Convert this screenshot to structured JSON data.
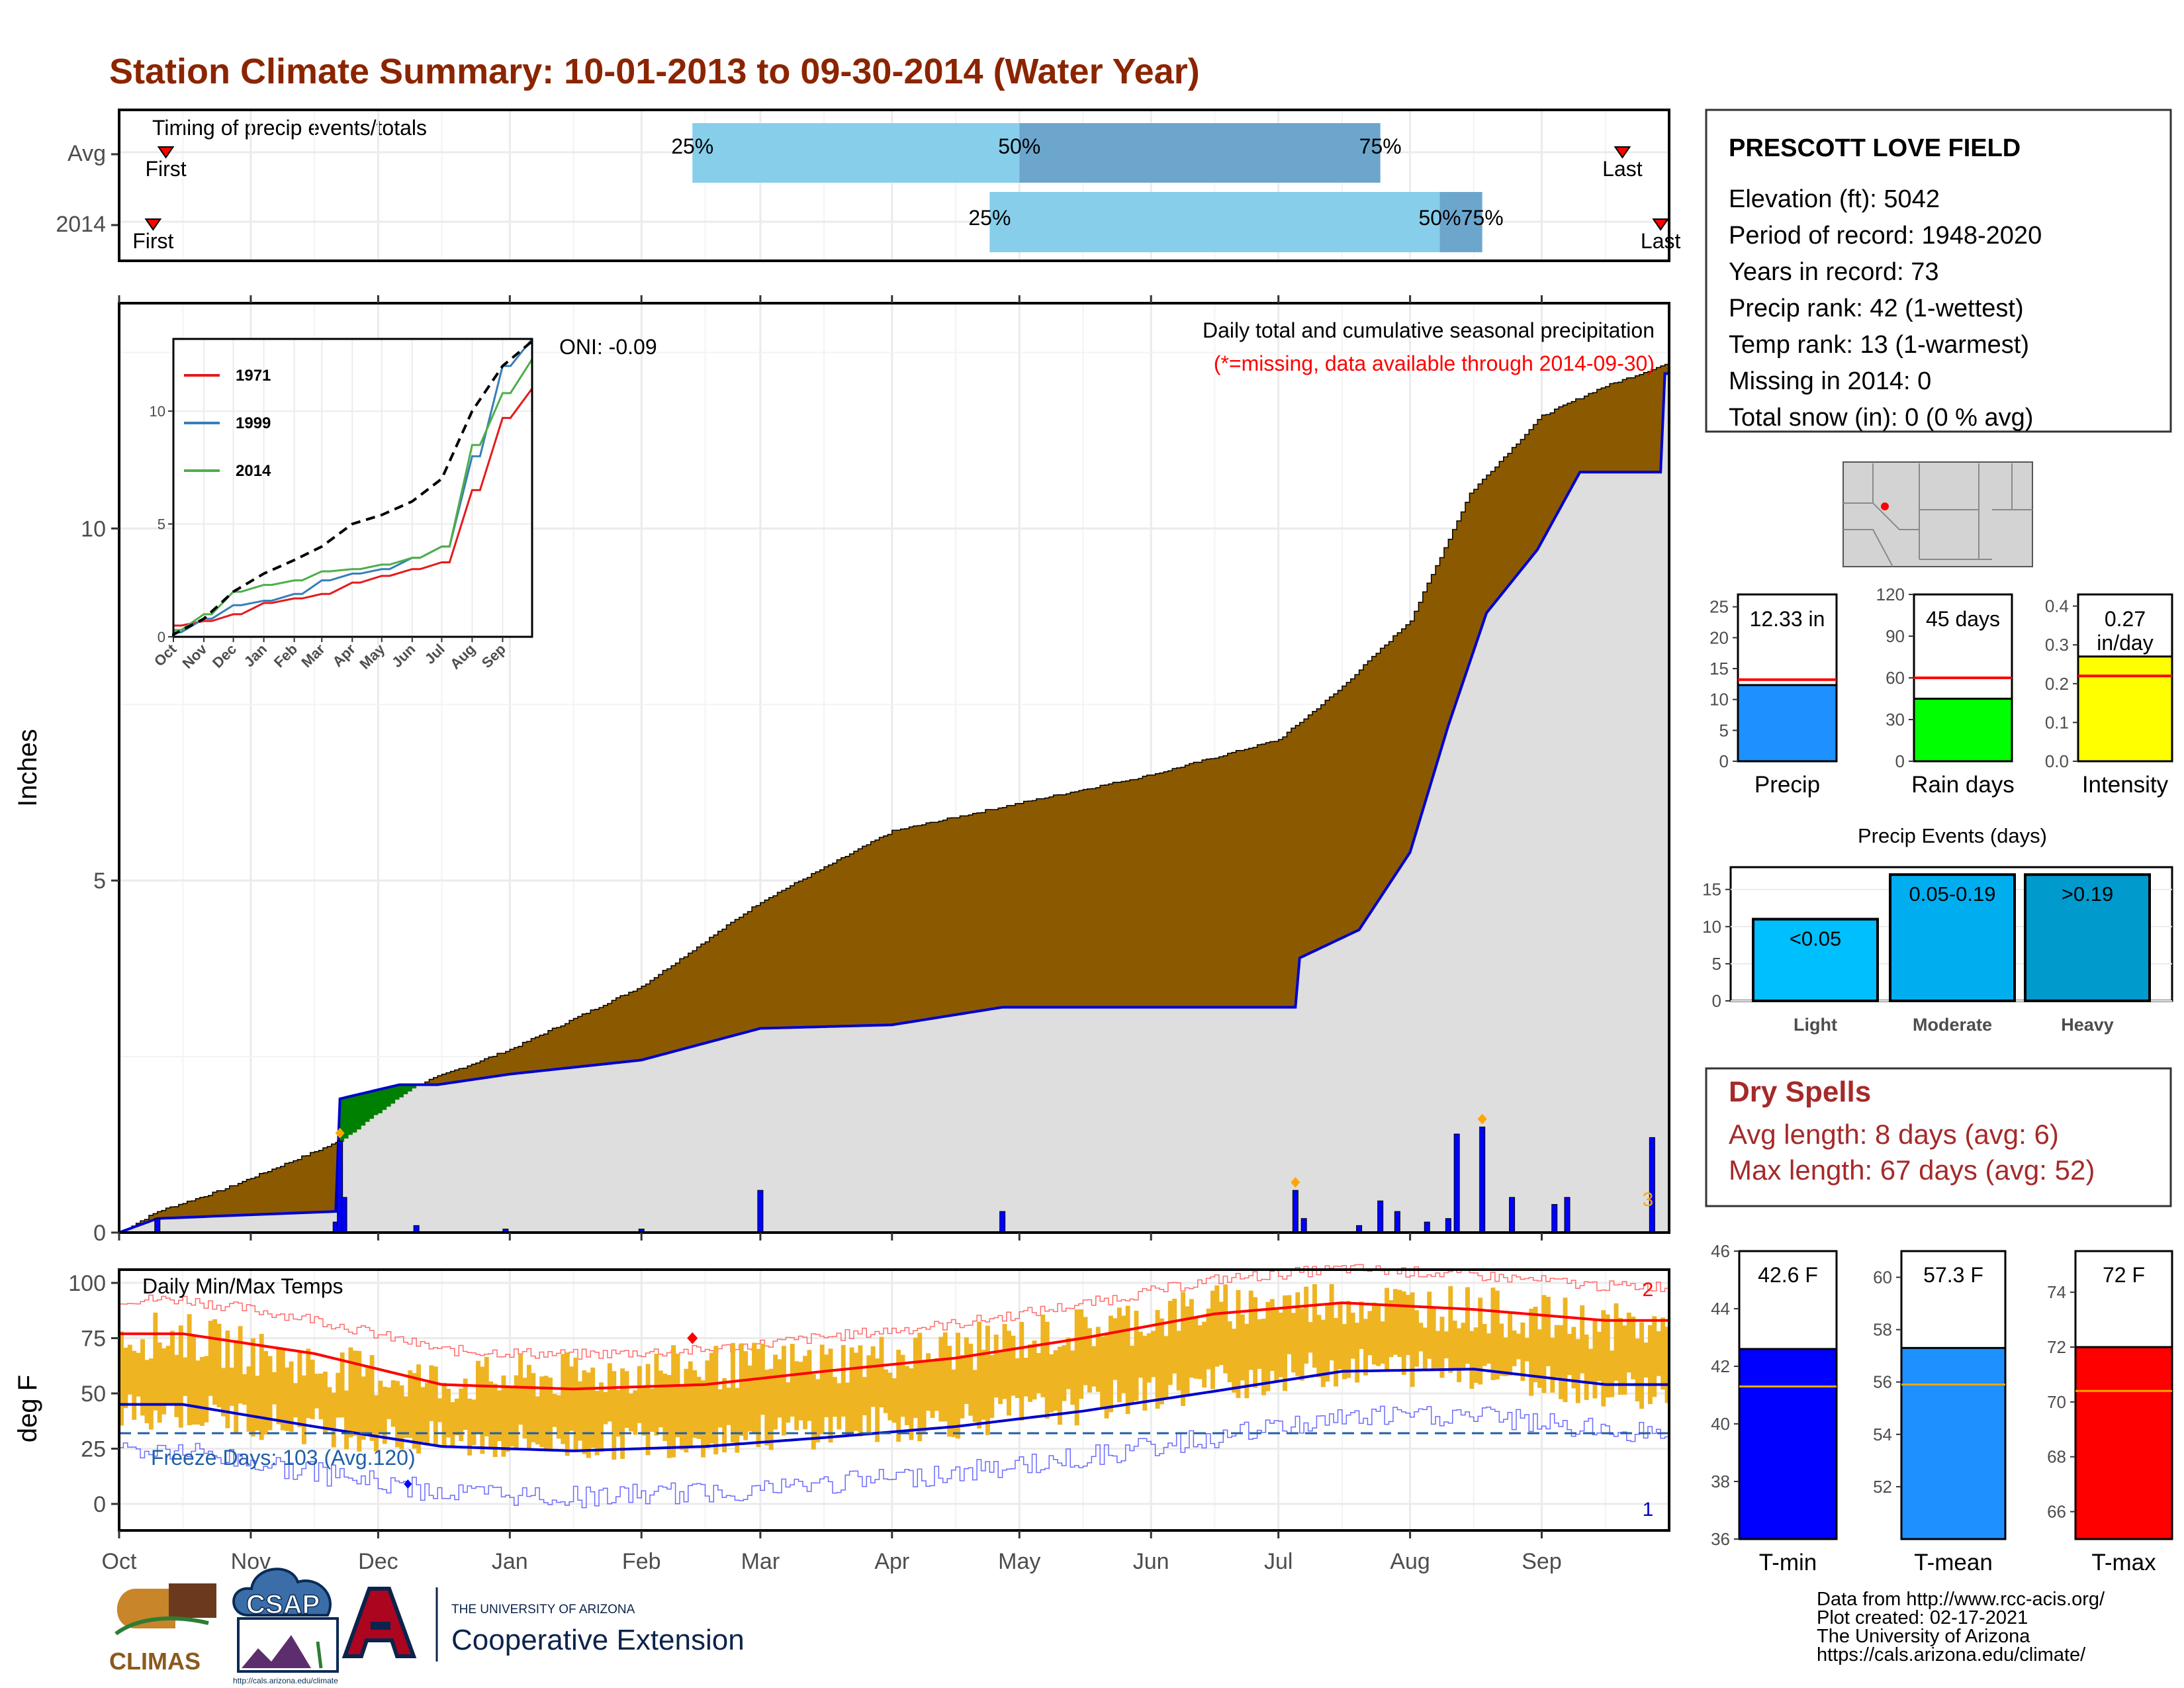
{
  "title": "Station Climate Summary: 10-01-2013 to 09-30-2014 (Water Year)",
  "timing": {
    "label": "Timing of precip events/totals",
    "rows": [
      "Avg",
      "2014"
    ],
    "first_label": "First",
    "last_label": "Last",
    "pct_labels": [
      "25%",
      "50%",
      "75%"
    ]
  },
  "months": [
    "Oct",
    "Nov",
    "Dec",
    "Jan",
    "Feb",
    "Mar",
    "Apr",
    "May",
    "Jun",
    "Jul",
    "Aug",
    "Sep"
  ],
  "precip_panel": {
    "ylabel": "Inches",
    "title": "Daily total and cumulative seasonal precipitation",
    "missing_note": "(*=missing, data available through 2014-09-30)",
    "oni": "ONI: -0.09",
    "corner_count": "3",
    "yticks": [
      "0",
      "5",
      "10"
    ],
    "colors": {
      "cum_2014": "#8B5A00",
      "avg_fill": "#008000",
      "avg_line": "#0000CD",
      "bars": "#0000FF",
      "background": "#DEDEDE"
    }
  },
  "inset": {
    "legend": [
      "1971",
      "1999",
      "2014"
    ],
    "colors": [
      "#E41A1C",
      "#377EB8",
      "#4DAF4A"
    ],
    "yticks": [
      "0",
      "5",
      "10"
    ],
    "xticks": [
      "Oct",
      "Nov",
      "Dec",
      "Jan",
      "Feb",
      "Mar",
      "Apr",
      "May",
      "Jun",
      "Jul",
      "Aug",
      "Sep"
    ]
  },
  "temp_panel": {
    "ylabel": "deg F",
    "title": "Daily Min/Max Temps",
    "freeze": "Freeze Days: 103 (Avg.120)",
    "count_top": "2",
    "count_bottom": "1",
    "yticks": [
      "0",
      "25",
      "50",
      "75",
      "100"
    ],
    "colors": {
      "bars": "#EEB422",
      "max_line": "#FF0000",
      "min_line": "#0000CD",
      "freeze_line": "#1F5FA8"
    }
  },
  "station": {
    "name": "PRESCOTT LOVE FIELD",
    "lines": [
      "Elevation (ft): 5042",
      "Period of record: 1948-2020",
      "Years in record: 73",
      "Precip rank: 42 (1-wettest)",
      "Temp rank: 13 (1-warmest)",
      "Missing in 2014: 0",
      "Total snow (in): 0 (0 % avg)"
    ]
  },
  "mini_bars": [
    {
      "label": "Precip",
      "value_text": "12.33 in",
      "color": "#1E90FF",
      "yticks": [
        "0",
        "5",
        "10",
        "15",
        "20",
        "25"
      ]
    },
    {
      "label": "Rain days",
      "value_text": "45 days",
      "color": "#00FF00",
      "yticks": [
        "0",
        "30",
        "60",
        "90",
        "120"
      ]
    },
    {
      "label": "Intensity",
      "value_text": "0.27",
      "value_text2": "in/day",
      "color": "#FFFF00",
      "yticks": [
        "0.0",
        "0.1",
        "0.2",
        "0.3",
        "0.4"
      ]
    }
  ],
  "events": {
    "title": "Precip Events (days)",
    "categories": [
      "Light",
      "Moderate",
      "Heavy"
    ],
    "bin_labels": [
      "<0.05",
      "0.05-0.19",
      ">0.19"
    ],
    "values": [
      11,
      17,
      17
    ],
    "colors": [
      "#00BFFF",
      "#00AEEF",
      "#009ACD"
    ],
    "yticks": [
      "0",
      "5",
      "10",
      "15"
    ]
  },
  "dry_spells": {
    "title": "Dry Spells",
    "avg": "Avg length: 8 days (avg: 6)",
    "max": "Max length: 67 days (avg: 52)"
  },
  "temp_bars": [
    {
      "label": "T-min",
      "value_text": "42.6 F",
      "color": "#0000FF",
      "yticks": [
        "36",
        "38",
        "40",
        "42",
        "44",
        "46"
      ]
    },
    {
      "label": "T-mean",
      "value_text": "57.3 F",
      "color": "#1E90FF",
      "yticks": [
        "52",
        "54",
        "56",
        "58",
        "60"
      ]
    },
    {
      "label": "T-max",
      "value_text": "72 F",
      "color": "#FF0000",
      "yticks": [
        "66",
        "68",
        "70",
        "72",
        "74"
      ]
    }
  ],
  "footer": {
    "lines": [
      "Data from http://www.rcc-acis.org/",
      "Plot created: 02-17-2021",
      "The University of Arizona",
      "https://cals.arizona.edu/climate/"
    ],
    "logo_climas": "CLIMAS",
    "logo_csap": "CSAP",
    "logo_csap_url": "http://cals.arizona.edu/climate",
    "ua_small": "THE UNIVERSITY OF ARIZONA",
    "ua_big": "Cooperative Extension"
  },
  "chart_data": [
    {
      "type": "bar",
      "title": "Timing of precip events/totals",
      "categories": [
        "Avg",
        "2014"
      ],
      "series": [
        {
          "name": "25%",
          "values": [
            "2014-02-13",
            "2014-04-24"
          ]
        },
        {
          "name": "50%",
          "values": [
            "2014-05-01",
            "2014-08-08"
          ]
        },
        {
          "name": "75%",
          "values": [
            "2014-07-25",
            "2014-08-18"
          ]
        },
        {
          "name": "First",
          "values": [
            "2013-10-12",
            "2013-10-09"
          ]
        },
        {
          "name": "Last",
          "values": [
            "2014-09-20",
            "2014-09-29"
          ]
        }
      ]
    },
    {
      "type": "area",
      "title": "Daily total and cumulative seasonal precipitation",
      "ylabel": "Inches",
      "ylim": [
        0,
        13.2
      ],
      "series": [
        {
          "name": "2014 cumulative",
          "x": [
            "2013-10-01",
            "2013-10-10",
            "2013-10-25",
            "2013-11-10",
            "2013-11-22",
            "2013-12-10",
            "2014-01-01",
            "2014-02-01",
            "2014-03-01",
            "2014-04-01",
            "2014-05-01",
            "2014-06-01",
            "2014-07-01",
            "2014-07-15",
            "2014-08-01",
            "2014-08-15",
            "2014-09-01",
            "2014-09-15",
            "2014-09-30"
          ],
          "values": [
            0.0,
            0.3,
            0.6,
            1.0,
            1.3,
            2.1,
            2.6,
            3.5,
            4.7,
            5.7,
            6.1,
            6.5,
            7.0,
            7.7,
            8.7,
            10.5,
            11.6,
            12.0,
            12.33
          ]
        },
        {
          "name": "Average cumulative",
          "x": [
            "2013-10-01",
            "2013-10-10",
            "2013-11-21",
            "2013-11-22",
            "2013-12-06",
            "2013-12-15",
            "2014-01-01",
            "2014-02-01",
            "2014-03-01",
            "2014-04-01",
            "2014-04-27",
            "2014-06-01",
            "2014-07-05",
            "2014-07-06",
            "2014-07-20",
            "2014-08-01",
            "2014-08-10",
            "2014-08-19",
            "2014-08-31",
            "2014-09-10",
            "2014-09-29",
            "2014-09-30"
          ],
          "values": [
            0.0,
            0.2,
            0.3,
            1.9,
            2.1,
            2.1,
            2.25,
            2.45,
            2.9,
            2.95,
            3.2,
            3.2,
            3.2,
            3.9,
            4.3,
            5.4,
            7.2,
            8.8,
            9.7,
            10.8,
            10.8,
            12.2
          ]
        },
        {
          "name": "Daily precip",
          "x": [
            "2013-10-10",
            "2013-11-21",
            "2013-11-22",
            "2013-11-23",
            "2013-12-10",
            "2013-12-31",
            "2014-02-01",
            "2014-03-01",
            "2014-04-27",
            "2014-07-05",
            "2014-07-07",
            "2014-07-20",
            "2014-07-25",
            "2014-07-29",
            "2014-08-05",
            "2014-08-10",
            "2014-08-12",
            "2014-08-18",
            "2014-08-25",
            "2014-09-04",
            "2014-09-07",
            "2014-09-27"
          ],
          "values": [
            0.2,
            0.15,
            1.3,
            0.5,
            0.1,
            0.05,
            0.05,
            0.6,
            0.3,
            0.6,
            0.2,
            0.1,
            0.45,
            0.3,
            0.15,
            0.2,
            1.4,
            1.5,
            0.5,
            0.4,
            0.5,
            1.35
          ]
        }
      ]
    },
    {
      "type": "line",
      "title": "",
      "ylim": [
        0,
        13.2
      ],
      "x": [
        "Oct",
        "Nov",
        "Dec",
        "Jan",
        "Feb",
        "Mar",
        "Apr",
        "May",
        "Jun",
        "Jul",
        "Aug",
        "Sep",
        "end"
      ],
      "series": [
        {
          "name": "1971",
          "values": [
            0.5,
            0.7,
            1.0,
            1.5,
            1.7,
            1.9,
            2.4,
            2.7,
            3.0,
            3.3,
            6.5,
            9.7,
            11.0
          ]
        },
        {
          "name": "1999",
          "values": [
            0.2,
            0.8,
            1.4,
            1.6,
            1.9,
            2.5,
            2.8,
            3.0,
            3.5,
            4.0,
            8.0,
            12.0,
            13.2
          ]
        },
        {
          "name": "2014",
          "values": [
            0.3,
            1.0,
            2.0,
            2.3,
            2.5,
            2.9,
            3.0,
            3.2,
            3.5,
            4.0,
            8.5,
            10.8,
            12.3
          ]
        },
        {
          "name": "Average",
          "values": [
            0.1,
            0.8,
            2.0,
            2.8,
            3.4,
            4.0,
            5.0,
            5.4,
            6.0,
            7.0,
            10.0,
            12.0,
            13.1
          ]
        }
      ]
    },
    {
      "type": "bar",
      "title": "Daily Min/Max Temps",
      "ylabel": "deg F",
      "ylim": [
        -12,
        106
      ],
      "categories": [
        "Oct",
        "Nov",
        "Dec",
        "Jan",
        "Feb",
        "Mar",
        "Apr",
        "May",
        "Jun",
        "Jul",
        "Aug",
        "Sep"
      ],
      "series": [
        {
          "name": "Avg Max",
          "values": [
            77,
            68,
            54,
            52,
            54,
            60,
            66,
            75,
            86,
            91,
            88,
            83
          ]
        },
        {
          "name": "Avg Min",
          "values": [
            45,
            35,
            26,
            24,
            26,
            30,
            35,
            42,
            51,
            60,
            61,
            54
          ]
        },
        {
          "name": "Daily Max",
          "values": [
            76,
            62,
            55,
            58,
            62,
            64,
            70,
            79,
            89,
            92,
            88,
            80
          ]
        },
        {
          "name": "Daily Min",
          "values": [
            42,
            35,
            28,
            28,
            30,
            34,
            38,
            45,
            55,
            62,
            61,
            52
          ]
        }
      ]
    },
    {
      "type": "bar",
      "title": "",
      "categories": [
        "Precip"
      ],
      "series": [
        {
          "name": "2014",
          "values": [
            12.33
          ]
        },
        {
          "name": "Avg",
          "values": [
            13.2
          ]
        }
      ],
      "ylim": [
        0,
        27
      ]
    },
    {
      "type": "bar",
      "title": "",
      "categories": [
        "Rain days"
      ],
      "series": [
        {
          "name": "2014",
          "values": [
            45
          ]
        },
        {
          "name": "Avg",
          "values": [
            60
          ]
        }
      ],
      "ylim": [
        0,
        120
      ]
    },
    {
      "type": "bar",
      "title": "",
      "categories": [
        "Intensity"
      ],
      "series": [
        {
          "name": "2014",
          "values": [
            0.27
          ]
        },
        {
          "name": "Avg",
          "values": [
            0.22
          ]
        }
      ],
      "ylim": [
        0,
        0.43
      ]
    },
    {
      "type": "bar",
      "title": "Precip Events (days)",
      "categories": [
        "Light",
        "Moderate",
        "Heavy"
      ],
      "values": [
        11,
        17,
        17
      ],
      "ylim": [
        0,
        18
      ]
    },
    {
      "type": "bar",
      "title": "",
      "categories": [
        "T-min"
      ],
      "series": [
        {
          "name": "2014",
          "values": [
            42.6
          ]
        },
        {
          "name": "Avg",
          "values": [
            41.3
          ]
        }
      ],
      "ylim": [
        36,
        46
      ]
    },
    {
      "type": "bar",
      "title": "",
      "categories": [
        "T-mean"
      ],
      "series": [
        {
          "name": "2014",
          "values": [
            57.3
          ]
        },
        {
          "name": "Avg",
          "values": [
            55.9
          ]
        }
      ],
      "ylim": [
        50,
        61
      ]
    },
    {
      "type": "bar",
      "title": "",
      "categories": [
        "T-max"
      ],
      "series": [
        {
          "name": "2014",
          "values": [
            72
          ]
        },
        {
          "name": "Avg",
          "values": [
            70.4
          ]
        }
      ],
      "ylim": [
        65,
        75.5
      ]
    }
  ]
}
